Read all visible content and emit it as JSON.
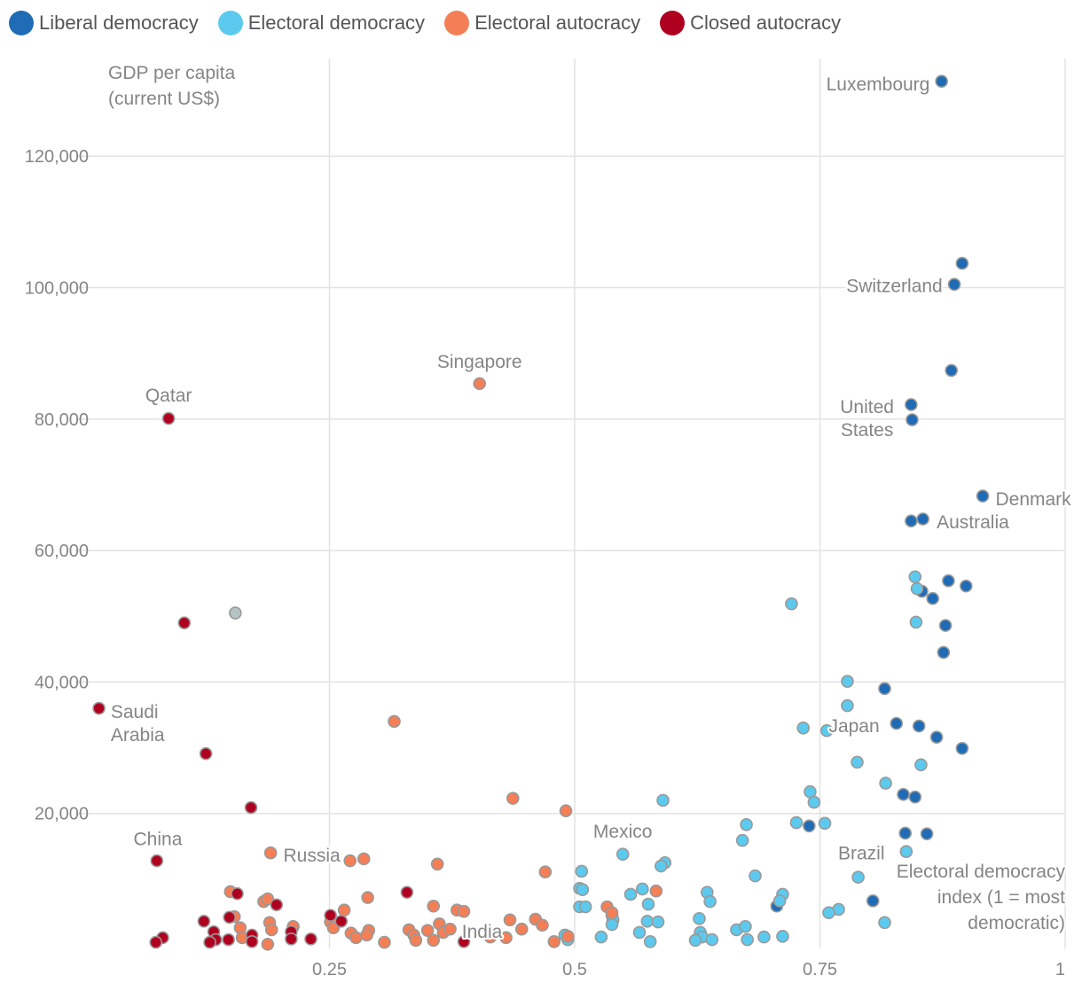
{
  "chart_data": {
    "type": "scatter",
    "xlabel": [
      "Electoral democracy",
      "index (1 = most",
      "democratic)"
    ],
    "ylabel": [
      "GDP per capita",
      "(current US$)"
    ],
    "xlim": [
      0,
      1
    ],
    "ylim": [
      0,
      130000
    ],
    "x_ticks": [
      0.25,
      0.5,
      0.75,
      1
    ],
    "x_tick_labels": [
      "0.25",
      "0.5",
      "0.75",
      "1"
    ],
    "y_ticks": [
      20000,
      40000,
      60000,
      80000,
      100000,
      120000
    ],
    "y_tick_labels": [
      "20,000",
      "40,000",
      "60,000",
      "80,000",
      "100,000",
      "120,000"
    ],
    "grid": true,
    "legend_placement": "top-left",
    "series": [
      {
        "name": "Liberal democracy",
        "color": "#1f6bb5",
        "points": [
          [
            0.874,
            131400
          ],
          [
            0.895,
            103700
          ],
          [
            0.887,
            100500
          ],
          [
            0.884,
            87400
          ],
          [
            0.843,
            82200
          ],
          [
            0.844,
            79900
          ],
          [
            0.916,
            68300
          ],
          [
            0.855,
            64800
          ],
          [
            0.843,
            64500
          ],
          [
            0.881,
            55400
          ],
          [
            0.899,
            54600
          ],
          [
            0.854,
            53800
          ],
          [
            0.865,
            52700
          ],
          [
            0.878,
            48600
          ],
          [
            0.876,
            44500
          ],
          [
            0.816,
            39000
          ],
          [
            0.828,
            33700
          ],
          [
            0.851,
            33300
          ],
          [
            0.869,
            31600
          ],
          [
            0.895,
            29900
          ],
          [
            0.835,
            22900
          ],
          [
            0.847,
            22500
          ],
          [
            0.739,
            18100
          ],
          [
            0.837,
            17000
          ],
          [
            0.859,
            16900
          ],
          [
            0.706,
            5900
          ],
          [
            0.804,
            6700
          ]
        ]
      },
      {
        "name": "Electoral democracy",
        "color": "#5ccaee",
        "points": [
          [
            0.847,
            56000
          ],
          [
            0.849,
            54200
          ],
          [
            0.848,
            49100
          ],
          [
            0.721,
            51900
          ],
          [
            0.778,
            40100
          ],
          [
            0.778,
            36400
          ],
          [
            0.733,
            33000
          ],
          [
            0.757,
            32600
          ],
          [
            0.788,
            27800
          ],
          [
            0.853,
            27400
          ],
          [
            0.817,
            24600
          ],
          [
            0.74,
            23300
          ],
          [
            0.744,
            21700
          ],
          [
            0.59,
            22000
          ],
          [
            0.726,
            18600
          ],
          [
            0.755,
            18500
          ],
          [
            0.675,
            18300
          ],
          [
            0.671,
            15900
          ],
          [
            0.838,
            14200
          ],
          [
            0.549,
            13800
          ],
          [
            0.507,
            11200
          ],
          [
            0.592,
            12500
          ],
          [
            0.588,
            12000
          ],
          [
            0.684,
            10500
          ],
          [
            0.789,
            10300
          ],
          [
            0.505,
            8600
          ],
          [
            0.508,
            8400
          ],
          [
            0.569,
            8500
          ],
          [
            0.557,
            7700
          ],
          [
            0.635,
            8000
          ],
          [
            0.712,
            7700
          ],
          [
            0.709,
            6700
          ],
          [
            0.575,
            6200
          ],
          [
            0.638,
            6600
          ],
          [
            0.505,
            5800
          ],
          [
            0.511,
            5800
          ],
          [
            0.769,
            5400
          ],
          [
            0.759,
            4900
          ],
          [
            0.538,
            4500
          ],
          [
            0.539,
            3800
          ],
          [
            0.538,
            3100
          ],
          [
            0.574,
            3600
          ],
          [
            0.585,
            3500
          ],
          [
            0.627,
            4000
          ],
          [
            0.816,
            3400
          ],
          [
            0.566,
            1900
          ],
          [
            0.527,
            1200
          ],
          [
            0.577,
            500
          ],
          [
            0.49,
            1500
          ],
          [
            0.493,
            800
          ],
          [
            0.628,
            1900
          ],
          [
            0.63,
            1200
          ],
          [
            0.623,
            700
          ],
          [
            0.64,
            800
          ],
          [
            0.665,
            2300
          ],
          [
            0.674,
            2800
          ],
          [
            0.676,
            800
          ],
          [
            0.693,
            1200
          ],
          [
            0.712,
            1300
          ]
        ]
      },
      {
        "name": "Electoral autocracy",
        "color": "#f47f57",
        "points": [
          [
            0.403,
            85400
          ],
          [
            0.316,
            34000
          ],
          [
            0.437,
            22300
          ],
          [
            0.491,
            20400
          ],
          [
            0.19,
            14000
          ],
          [
            0.271,
            12800
          ],
          [
            0.285,
            13100
          ],
          [
            0.36,
            12300
          ],
          [
            0.47,
            11100
          ],
          [
            0.583,
            8200
          ],
          [
            0.149,
            8100
          ],
          [
            0.183,
            6600
          ],
          [
            0.187,
            7000
          ],
          [
            0.289,
            7200
          ],
          [
            0.356,
            5900
          ],
          [
            0.38,
            5300
          ],
          [
            0.387,
            5100
          ],
          [
            0.533,
            5800
          ],
          [
            0.538,
            4900
          ],
          [
            0.153,
            4300
          ],
          [
            0.265,
            5300
          ],
          [
            0.251,
            3500
          ],
          [
            0.254,
            2600
          ],
          [
            0.189,
            3400
          ],
          [
            0.191,
            2300
          ],
          [
            0.213,
            2800
          ],
          [
            0.159,
            2600
          ],
          [
            0.161,
            1100
          ],
          [
            0.272,
            1800
          ],
          [
            0.277,
            1100
          ],
          [
            0.29,
            2200
          ],
          [
            0.288,
            1500
          ],
          [
            0.306,
            400
          ],
          [
            0.331,
            2300
          ],
          [
            0.336,
            1500
          ],
          [
            0.338,
            700
          ],
          [
            0.35,
            2200
          ],
          [
            0.356,
            700
          ],
          [
            0.362,
            3200
          ],
          [
            0.366,
            1900
          ],
          [
            0.373,
            2400
          ],
          [
            0.434,
            3800
          ],
          [
            0.446,
            2400
          ],
          [
            0.46,
            3900
          ],
          [
            0.467,
            3000
          ],
          [
            0.479,
            500
          ],
          [
            0.493,
            1300
          ],
          [
            0.187,
            100
          ],
          [
            0.43,
            1100
          ],
          [
            0.414,
            1200
          ]
        ]
      },
      {
        "name": "Closed autocracy",
        "color": "#b00020",
        "points": [
          [
            0.086,
            80100
          ],
          [
            0.102,
            49000
          ],
          [
            0.015,
            36000
          ],
          [
            0.124,
            29100
          ],
          [
            0.17,
            20900
          ],
          [
            0.074,
            12800
          ],
          [
            0.156,
            7800
          ],
          [
            0.196,
            6100
          ],
          [
            0.329,
            8000
          ],
          [
            0.251,
            4500
          ],
          [
            0.262,
            3600
          ],
          [
            0.122,
            3600
          ],
          [
            0.148,
            4200
          ],
          [
            0.132,
            2000
          ],
          [
            0.134,
            800
          ],
          [
            0.128,
            400
          ],
          [
            0.147,
            800
          ],
          [
            0.171,
            1500
          ],
          [
            0.171,
            500
          ],
          [
            0.211,
            2000
          ],
          [
            0.211,
            900
          ],
          [
            0.231,
            900
          ],
          [
            0.08,
            1100
          ],
          [
            0.073,
            400
          ],
          [
            0.387,
            500
          ]
        ]
      },
      {
        "color": "#b5c4c4",
        "points": [
          [
            0.154,
            50500
          ]
        ]
      }
    ],
    "annotations": [
      {
        "text": [
          "Luxembourg"
        ],
        "x": 0.862,
        "y": 130000,
        "anchor": "end"
      },
      {
        "text": [
          "Switzerland"
        ],
        "x": 0.875,
        "y": 99300,
        "anchor": "end"
      },
      {
        "text": [
          "Singapore"
        ],
        "x": 0.403,
        "y": 87800,
        "anchor": "middle"
      },
      {
        "text": [
          "Qatar"
        ],
        "x": 0.086,
        "y": 82700,
        "anchor": "middle"
      },
      {
        "text": [
          "United",
          "States"
        ],
        "x": 0.798,
        "y": 80900,
        "anchor": "middle"
      },
      {
        "text": [
          "Denmark"
        ],
        "x": 0.929,
        "y": 66900,
        "anchor": "start"
      },
      {
        "text": [
          "Australia"
        ],
        "x": 0.869,
        "y": 63400,
        "anchor": "start"
      },
      {
        "text": [
          "Japan"
        ],
        "x": 0.759,
        "y": 32400,
        "anchor": "start"
      },
      {
        "text": [
          "Saudi",
          "Arabia"
        ],
        "x": 0.027,
        "y": 34500,
        "anchor": "start"
      },
      {
        "text": [
          "China"
        ],
        "x": 0.075,
        "y": 15200,
        "anchor": "middle"
      },
      {
        "text": [
          "Russia"
        ],
        "x": 0.203,
        "y": 12700,
        "anchor": "start"
      },
      {
        "text": [
          "Mexico"
        ],
        "x": 0.549,
        "y": 16300,
        "anchor": "middle"
      },
      {
        "text": [
          "Brazil"
        ],
        "x": 0.816,
        "y": 13000,
        "anchor": "end"
      },
      {
        "text": [
          "India"
        ],
        "x": 0.385,
        "y": 1100,
        "anchor": "start"
      }
    ]
  },
  "legend": [
    {
      "label": "Liberal democracy",
      "color": "#1f6bb5"
    },
    {
      "label": "Electoral democracy",
      "color": "#5ccaee"
    },
    {
      "label": "Electoral autocracy",
      "color": "#f47f57"
    },
    {
      "label": "Closed autocracy",
      "color": "#b00020"
    }
  ]
}
